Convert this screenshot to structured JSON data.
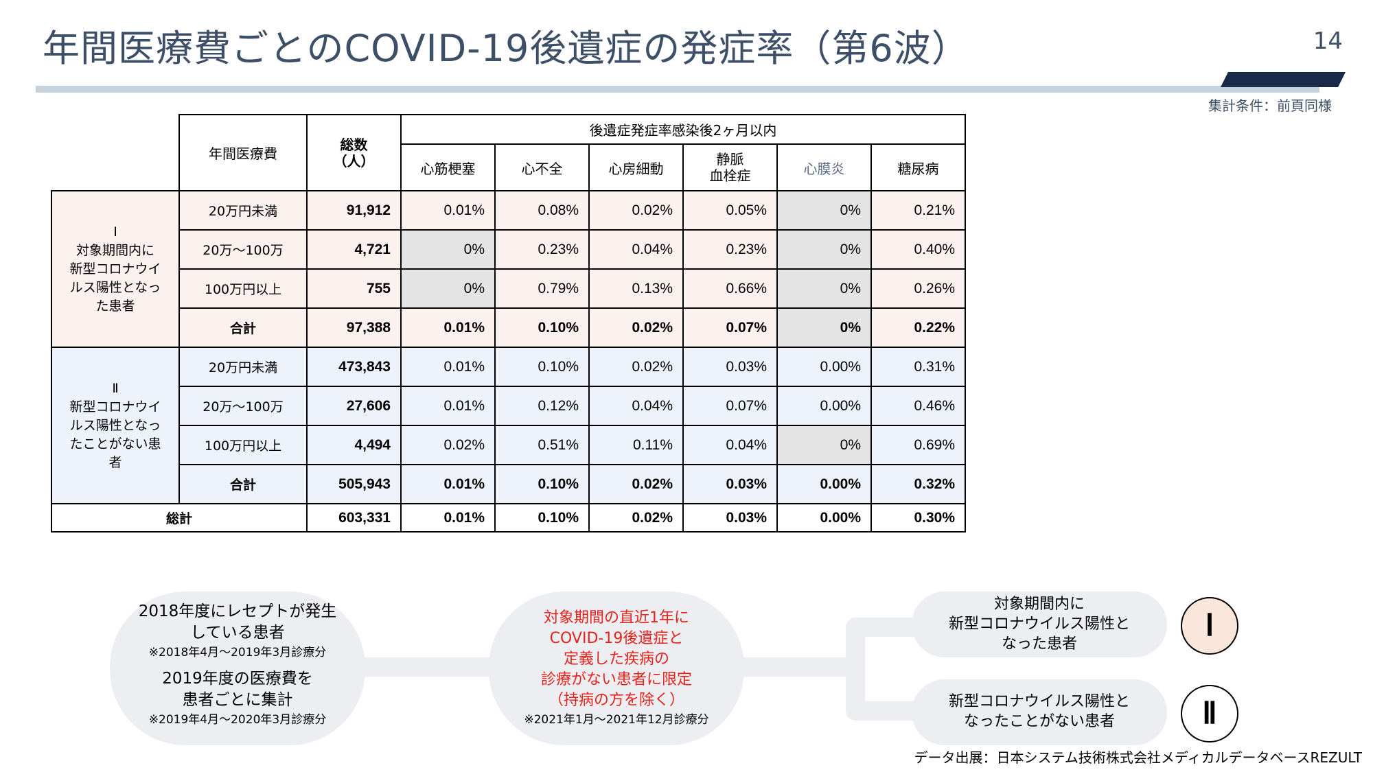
{
  "title": "年間医療費ごとのCOVID-19後遺症の発症率（第6波）",
  "page_number": "14",
  "condition_note": "集計条件：前頁同様",
  "table": {
    "col_headers": {
      "annual_cost": "年間医療費",
      "total": "総数\n（人）",
      "sequela_group": "後遺症発症率感染後2ヶ月以内",
      "diseases": [
        "心筋梗塞",
        "心不全",
        "心房細動",
        "静脈\n血栓症",
        "心膜炎",
        "糖尿病"
      ]
    },
    "groups": [
      {
        "label": "Ⅰ\n対象期間内に\n新型コロナウイ\nルス陽性となっ\nた患者",
        "rows": [
          {
            "cost": "20万円未満",
            "total": "91,912",
            "rates": [
              "0.01%",
              "0.08%",
              "0.02%",
              "0.05%",
              "0%",
              "0.21%"
            ]
          },
          {
            "cost": "20万～100万",
            "total": "4,721",
            "rates": [
              "0%",
              "0.23%",
              "0.04%",
              "0.23%",
              "0%",
              "0.40%"
            ]
          },
          {
            "cost": "100万円以上",
            "total": "755",
            "rates": [
              "0%",
              "0.79%",
              "0.13%",
              "0.66%",
              "0%",
              "0.26%"
            ]
          }
        ],
        "subtotal": {
          "cost": "合計",
          "total": "97,388",
          "rates": [
            "0.01%",
            "0.10%",
            "0.02%",
            "0.07%",
            "0%",
            "0.22%"
          ]
        }
      },
      {
        "label": "Ⅱ\n新型コロナウイ\nルス陽性となっ\nたことがない患\n者",
        "rows": [
          {
            "cost": "20万円未満",
            "total": "473,843",
            "rates": [
              "0.01%",
              "0.10%",
              "0.02%",
              "0.03%",
              "0.00%",
              "0.31%"
            ]
          },
          {
            "cost": "20万～100万",
            "total": "27,606",
            "rates": [
              "0.01%",
              "0.12%",
              "0.04%",
              "0.07%",
              "0.00%",
              "0.46%"
            ]
          },
          {
            "cost": "100万円以上",
            "total": "4,494",
            "rates": [
              "0.02%",
              "0.51%",
              "0.11%",
              "0.04%",
              "0%",
              "0.69%"
            ]
          }
        ],
        "subtotal": {
          "cost": "合計",
          "total": "505,943",
          "rates": [
            "0.01%",
            "0.10%",
            "0.02%",
            "0.03%",
            "0.00%",
            "0.32%"
          ]
        }
      }
    ],
    "grand_total": {
      "label": "総計",
      "total": "603,331",
      "rates": [
        "0.01%",
        "0.10%",
        "0.02%",
        "0.03%",
        "0.00%",
        "0.30%"
      ]
    }
  },
  "flow": {
    "left_box": {
      "line1": "2018年度にレセプトが発生",
      "line2": "している患者",
      "note1": "※2018年4月～2019年3月診療分",
      "line3": "2019年度の医療費を",
      "line4": "患者ごとに集計",
      "note2": "※2019年4月～2020年3月診療分"
    },
    "middle_box": {
      "line1": "対象期間の直近1年に",
      "line2": "COVID-19後遺症と",
      "line3": "定義した疾病の",
      "line4": "診療がない患者に限定",
      "line5": "（持病の方を除く）",
      "note": "※2021年1月～2021年12月診療分",
      "accent_color": "#e8231c"
    },
    "top_right_box": {
      "line1": "対象期間内に",
      "line2": "新型コロナウイルス陽性と",
      "line3": "なった患者",
      "roman": "Ⅰ"
    },
    "bottom_right_box": {
      "line1": "新型コロナウイルス陽性と",
      "line2": "なったことがない患者",
      "roman": "Ⅱ"
    }
  },
  "source": "データ出展：日本システム技術株式会社メディカルデータベースREZULT",
  "colors": {
    "title": "#3d4f66",
    "accent_bar": "#18294a",
    "group1_bg": "#fbf1ef",
    "group2_bg": "#eef3fb",
    "zero_cell_bg": "#e4e4e4"
  }
}
